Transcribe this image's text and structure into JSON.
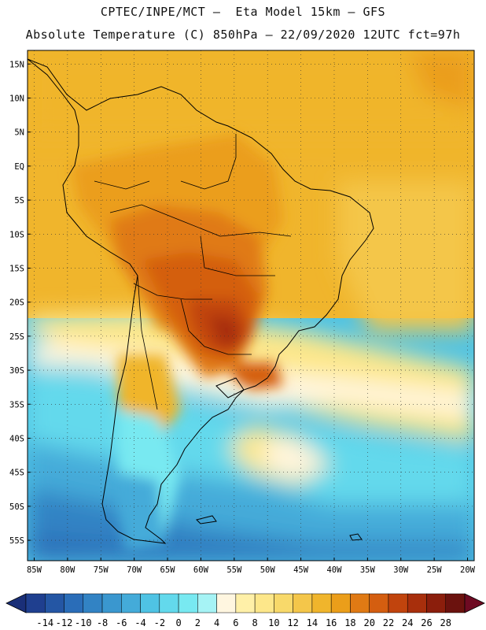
{
  "header": {
    "line1": "CPTEC/INPE/MCT –  Eta Model 15km – GFS",
    "line2": "Absolute Temperature (C) 850hPa – 22/09/2020 12UTC fct=97h"
  },
  "map": {
    "lon_range": [
      -86,
      -19
    ],
    "lat_range": [
      -58,
      17
    ],
    "lat_labels": [
      "15N",
      "10N",
      "5N",
      "EQ",
      "5S",
      "10S",
      "15S",
      "20S",
      "25S",
      "30S",
      "35S",
      "40S",
      "45S",
      "50S",
      "55S"
    ],
    "lat_values": [
      15,
      10,
      5,
      0,
      -5,
      -10,
      -15,
      -20,
      -25,
      -30,
      -35,
      -40,
      -45,
      -50,
      -55
    ],
    "lon_labels": [
      "85W",
      "80W",
      "75W",
      "70W",
      "65W",
      "60W",
      "55W",
      "50W",
      "45W",
      "40W",
      "35W",
      "30W",
      "25W",
      "20W"
    ],
    "lon_values": [
      -85,
      -80,
      -75,
      -70,
      -65,
      -60,
      -55,
      -50,
      -45,
      -40,
      -35,
      -30,
      -25,
      -20
    ]
  },
  "colorbar": {
    "labels": [
      "-14",
      "-12",
      "-10",
      "-8",
      "-6",
      "-4",
      "-2",
      "0",
      "2",
      "4",
      "6",
      "8",
      "10",
      "12",
      "14",
      "16",
      "18",
      "20",
      "22",
      "24",
      "26",
      "28"
    ],
    "colors": [
      "#1f3f8f",
      "#2456a4",
      "#2a6db8",
      "#3283c4",
      "#3a97cf",
      "#44abd9",
      "#4fc3e4",
      "#63d9ec",
      "#78e9f1",
      "#a6f3f5",
      "#fff6e0",
      "#fff0a8",
      "#fde78a",
      "#f8d96a",
      "#f4c64a",
      "#f0b52c",
      "#eb9e1a",
      "#e07a14",
      "#d45e10",
      "#c1440d",
      "#a82f0c",
      "#8b1e0c",
      "#6b120e"
    ],
    "under_color": "#1a2f78",
    "over_color": "#6e0a22"
  }
}
